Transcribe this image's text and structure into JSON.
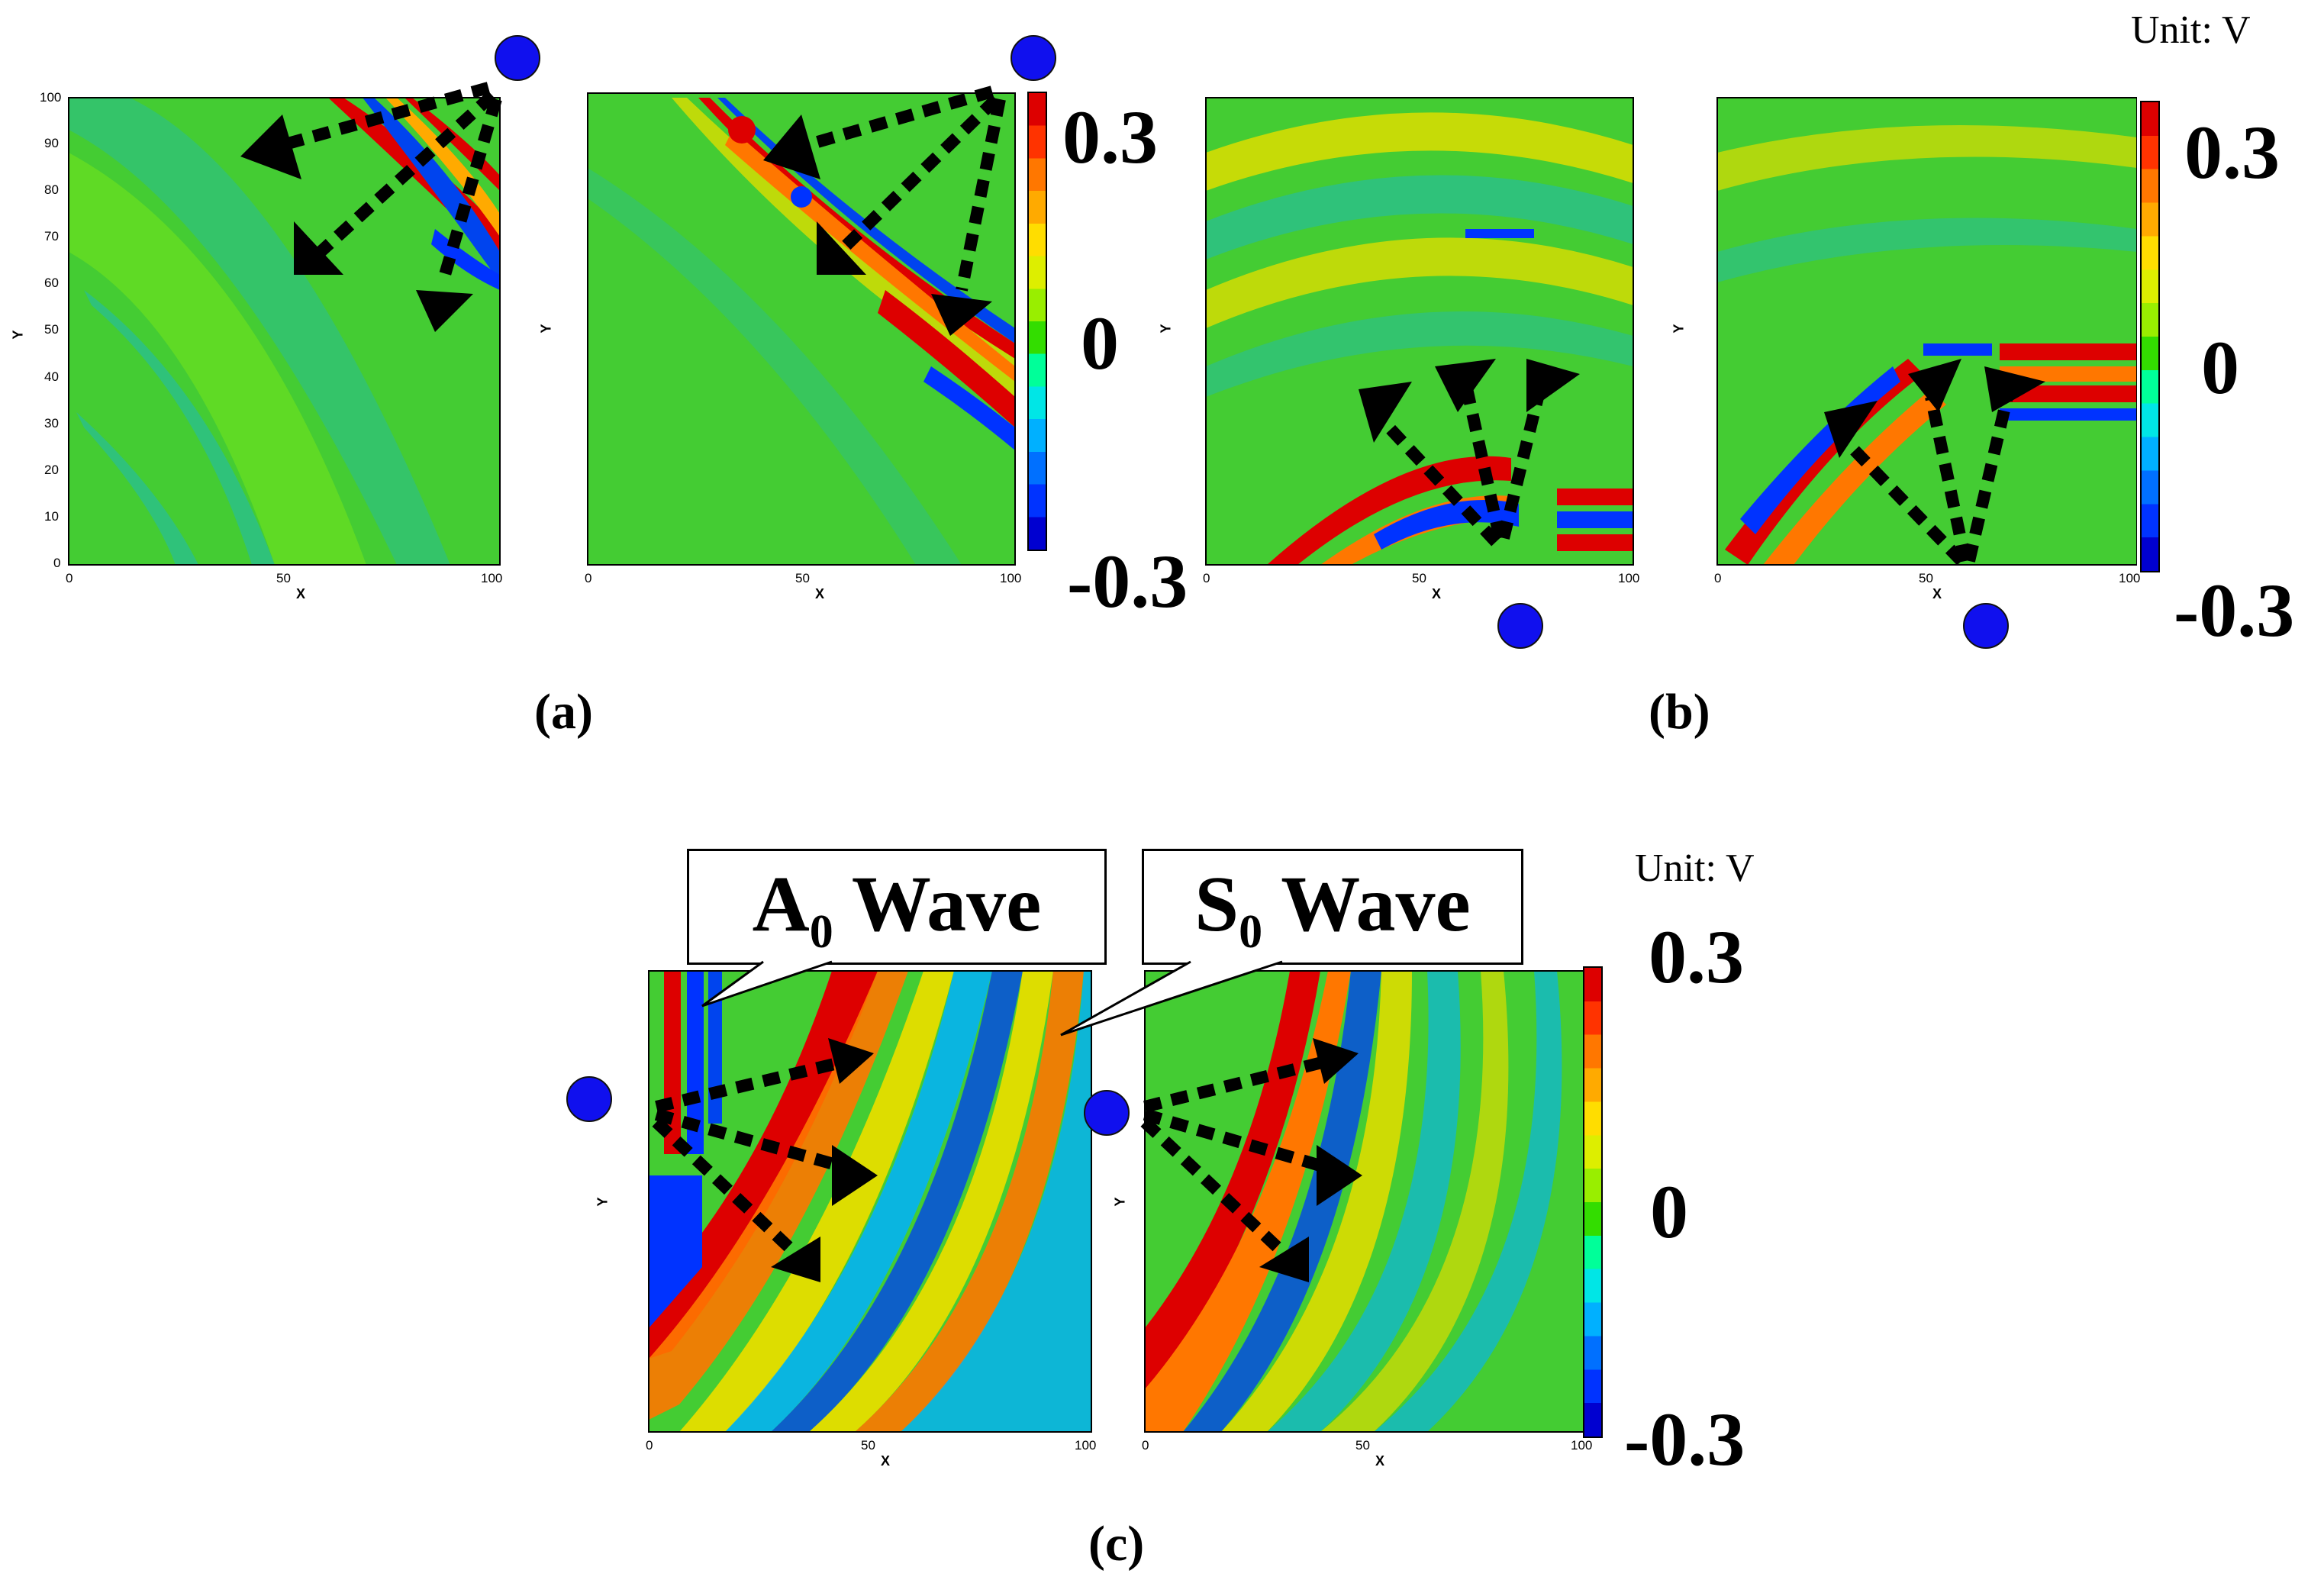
{
  "unit_label": "Unit: V",
  "colorbar": {
    "max_label": "0.3",
    "mid_label": "0",
    "min_label": "-0.3",
    "colors": [
      "#0000d0",
      "#0033ff",
      "#0070ff",
      "#00b0ff",
      "#00e6e6",
      "#00ff99",
      "#33dd00",
      "#99ee00",
      "#ddee00",
      "#ffdd00",
      "#ffaa00",
      "#ff7700",
      "#ff3300",
      "#dd0000"
    ]
  },
  "captions": {
    "a": "(a)",
    "b": "(b)",
    "c": "(c)"
  },
  "axis": {
    "x_label": "X",
    "y_label": "Y",
    "x_ticks": [
      "0",
      "50",
      "100"
    ],
    "y_ticks": [
      "0",
      "10",
      "20",
      "30",
      "40",
      "50",
      "60",
      "70",
      "80",
      "90",
      "100"
    ]
  },
  "callouts": {
    "a0": {
      "main": "A",
      "sub": "0",
      "rest": " Wave"
    },
    "s0": {
      "main": "S",
      "sub": "0",
      "rest": " Wave"
    }
  },
  "colors": {
    "background_field": "#33cc33",
    "source_marker": "#1010ee",
    "arrow": "#000000"
  }
}
